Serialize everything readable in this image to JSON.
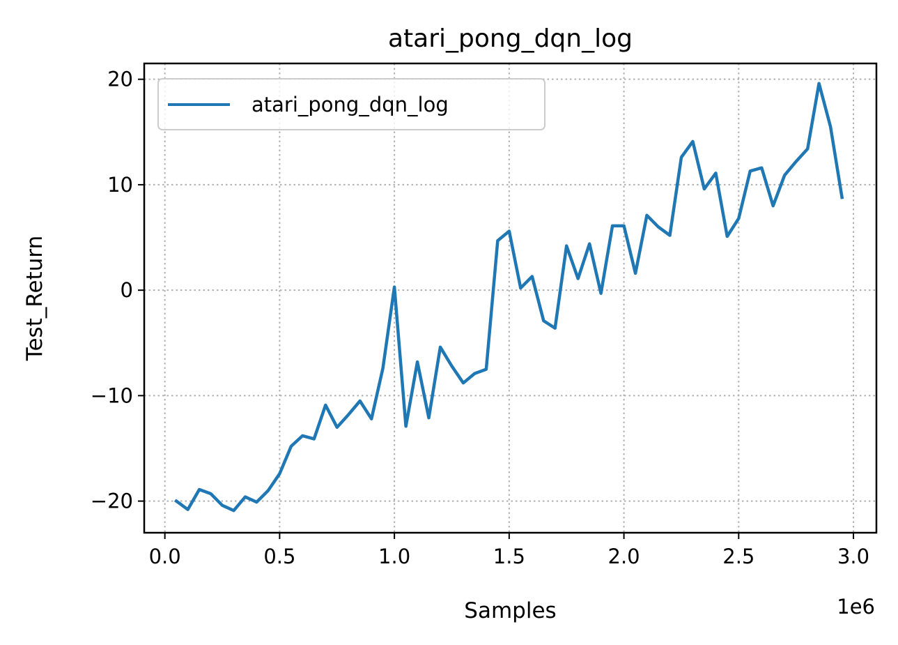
{
  "chart_data": {
    "type": "line",
    "title": "atari_pong_dqn_log",
    "xlabel": "Samples",
    "ylabel": "Test_Return",
    "x_offset_label": "1e6",
    "xlim": [
      -90000,
      3100000
    ],
    "ylim": [
      -23,
      21.5
    ],
    "xticks": [
      0,
      500000,
      1000000,
      1500000,
      2000000,
      2500000,
      3000000
    ],
    "xtick_labels": [
      "0.0",
      "0.5",
      "1.0",
      "1.5",
      "2.0",
      "2.5",
      "3.0"
    ],
    "yticks": [
      -20,
      -10,
      0,
      10,
      20
    ],
    "ytick_labels": [
      "−20",
      "−10",
      "0",
      "10",
      "20"
    ],
    "grid": true,
    "legend_position": "upper-left",
    "series": [
      {
        "name": "atari_pong_dqn_log",
        "color": "#1f77b4",
        "x": [
          50000,
          100000,
          150000,
          200000,
          250000,
          300000,
          350000,
          400000,
          450000,
          500000,
          550000,
          600000,
          650000,
          700000,
          750000,
          800000,
          850000,
          900000,
          950000,
          1000000,
          1050000,
          1100000,
          1150000,
          1200000,
          1250000,
          1300000,
          1350000,
          1400000,
          1450000,
          1500000,
          1550000,
          1600000,
          1650000,
          1700000,
          1750000,
          1800000,
          1850000,
          1900000,
          1950000,
          2000000,
          2050000,
          2100000,
          2150000,
          2200000,
          2250000,
          2300000,
          2350000,
          2400000,
          2450000,
          2500000,
          2550000,
          2600000,
          2650000,
          2700000,
          2750000,
          2800000,
          2850000,
          2900000,
          2950000
        ],
        "y": [
          -20.0,
          -20.8,
          -18.9,
          -19.3,
          -20.4,
          -20.9,
          -19.6,
          -20.1,
          -19.0,
          -17.4,
          -14.8,
          -13.8,
          -14.1,
          -10.9,
          -13.0,
          -11.8,
          -10.5,
          -12.2,
          -7.4,
          0.3,
          -12.9,
          -6.8,
          -12.1,
          -5.4,
          -7.2,
          -8.8,
          -7.9,
          -7.5,
          4.7,
          5.6,
          0.2,
          1.3,
          -2.9,
          -3.6,
          4.2,
          1.1,
          4.4,
          -0.3,
          6.1,
          6.1,
          1.6,
          7.1,
          6.0,
          5.2,
          12.6,
          14.1,
          9.6,
          11.1,
          5.1,
          6.8,
          11.3,
          11.6,
          8.0,
          10.9,
          12.2,
          13.4,
          19.6,
          15.5,
          8.8
        ]
      }
    ]
  }
}
